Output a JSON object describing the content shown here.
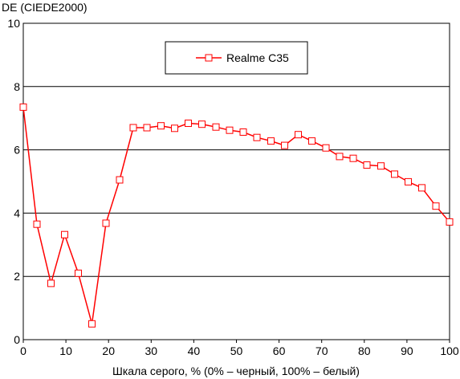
{
  "chart_data": {
    "type": "line",
    "ylabel": "DE (CIEDE2000)",
    "xlabel": "Шкала серого, % (0% – черный, 100% – белый)",
    "xlim": [
      0,
      100
    ],
    "ylim": [
      0,
      10
    ],
    "x_ticks": [
      "0",
      "10",
      "20",
      "30",
      "40",
      "50",
      "60",
      "70",
      "80",
      "90",
      "100"
    ],
    "y_ticks": [
      "0",
      "2",
      "4",
      "6",
      "8",
      "10"
    ],
    "grid": {
      "horizontal": true,
      "vertical": false
    },
    "legend_position": "top-center",
    "series": [
      {
        "name": "Realme C35",
        "color": "#ff0000",
        "marker": "open-square",
        "x": [
          0,
          3.2,
          6.5,
          9.7,
          12.9,
          16.1,
          19.4,
          22.6,
          25.8,
          29,
          32.3,
          35.5,
          38.7,
          41.9,
          45.2,
          48.4,
          51.6,
          54.8,
          58.1,
          61.3,
          64.5,
          67.7,
          71,
          74.2,
          77.4,
          80.6,
          83.9,
          87.1,
          90.3,
          93.5,
          96.8,
          100
        ],
        "y": [
          7.35,
          3.65,
          1.78,
          3.32,
          2.1,
          0.5,
          3.68,
          5.05,
          6.7,
          6.7,
          6.76,
          6.68,
          6.84,
          6.81,
          6.72,
          6.62,
          6.56,
          6.39,
          6.28,
          6.14,
          6.48,
          6.28,
          6.06,
          5.79,
          5.73,
          5.52,
          5.49,
          5.23,
          4.99,
          4.8,
          4.22,
          3.72
        ]
      }
    ]
  }
}
